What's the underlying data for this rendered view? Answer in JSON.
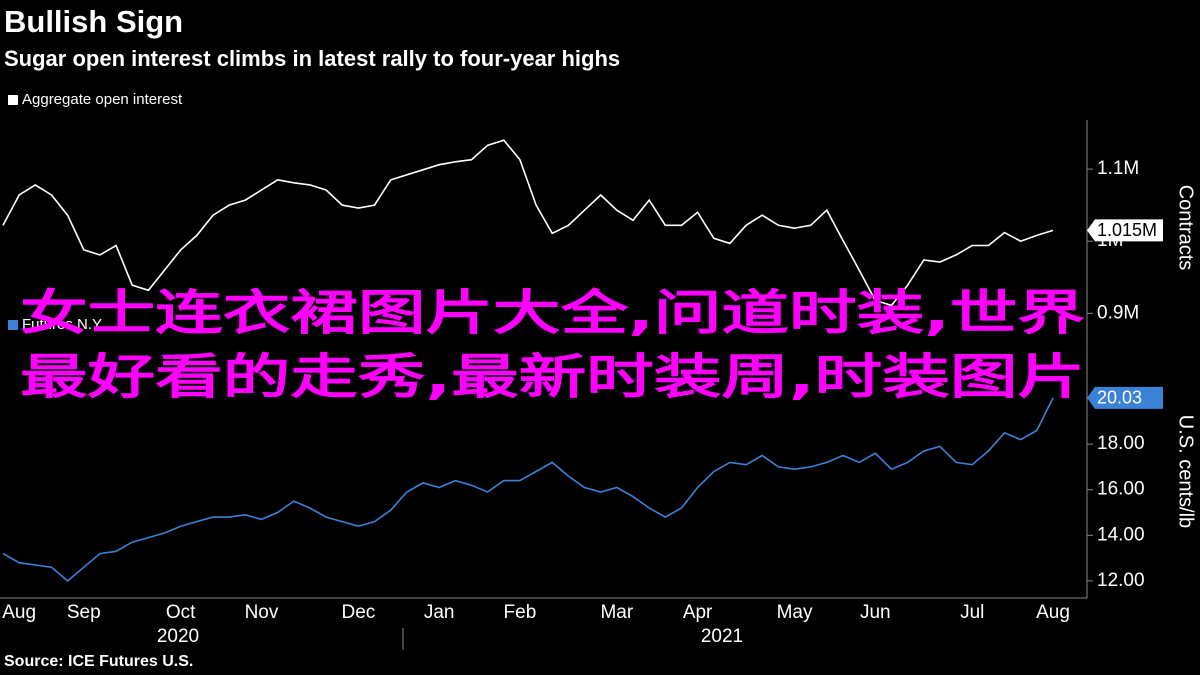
{
  "title": "Bullish Sign",
  "subtitle": "Sugar open interest climbs in latest rally to four-year highs",
  "source": "Source: ICE Futures U.S.",
  "overlay": [
    "女士连衣裙图片大全,问道时装,世界",
    "最好看的走秀,最新时装周,时装图片"
  ],
  "chart_data": [
    {
      "type": "line",
      "y_label": "Contracts",
      "ylim": [
        870000,
        1168000
      ],
      "yticks": [
        {
          "value": 900000,
          "label": "0.9M"
        },
        {
          "value": 1000000,
          "label": "1M"
        },
        {
          "value": 1100000,
          "label": "1.1M"
        }
      ],
      "grid": false,
      "series": [
        {
          "name": "Aggregate open interest",
          "color": "#ffffff",
          "values": [
            1022000,
            1064000,
            1078000,
            1064000,
            1036000,
            988000,
            981000,
            994000,
            939000,
            932000,
            960000,
            988000,
            1008000,
            1036000,
            1050000,
            1057000,
            1071000,
            1085000,
            1081000,
            1078000,
            1071000,
            1050000,
            1046000,
            1050000,
            1085000,
            1092000,
            1099000,
            1106000,
            1110000,
            1113000,
            1133000,
            1140000,
            1113000,
            1050000,
            1011000,
            1022000,
            1043000,
            1064000,
            1043000,
            1029000,
            1057000,
            1022000,
            1022000,
            1040000,
            1004000,
            997000,
            1022000,
            1036000,
            1022000,
            1018000,
            1022000,
            1043000,
            1001000,
            960000,
            918000,
            911000,
            939000,
            974000,
            971000,
            981000,
            994000,
            994000,
            1012000,
            1000000,
            1008000,
            1015000
          ],
          "value_labels": [
            null,
            null,
            null,
            null,
            null,
            null,
            null,
            null,
            null,
            null,
            null,
            null,
            null,
            null,
            null,
            null,
            null,
            null,
            null,
            null,
            null,
            null,
            null,
            null,
            null,
            null,
            null,
            null,
            null,
            null,
            null,
            null,
            null,
            null,
            null,
            null,
            null,
            null,
            null,
            null,
            null,
            null,
            null,
            null,
            null,
            null,
            null,
            null,
            null,
            null,
            null,
            null,
            null,
            null,
            null,
            null,
            null,
            null,
            null,
            null,
            null,
            null,
            null,
            null,
            null,
            "1.015M"
          ]
        }
      ]
    },
    {
      "type": "line",
      "y_label": "U.S. cents/lb",
      "ylim": [
        11.25,
        22.35
      ],
      "yticks": [
        {
          "value": 12,
          "label": "12.00"
        },
        {
          "value": 14,
          "label": "14.00"
        },
        {
          "value": 16,
          "label": "16.00"
        },
        {
          "value": 18,
          "label": "18.00"
        },
        {
          "value": 20,
          "label": "20.00"
        }
      ],
      "grid": false,
      "categories": [
        null,
        "Aug",
        null,
        null,
        null,
        "Sep",
        null,
        null,
        null,
        null,
        null,
        "Oct",
        null,
        null,
        null,
        null,
        "Nov",
        null,
        null,
        null,
        null,
        null,
        "Dec",
        null,
        null,
        null,
        null,
        "Jan",
        null,
        null,
        null,
        null,
        "Feb",
        null,
        null,
        null,
        null,
        null,
        "Mar",
        null,
        null,
        null,
        null,
        "Apr",
        null,
        null,
        null,
        null,
        null,
        "May",
        null,
        null,
        null,
        null,
        "Jun",
        null,
        null,
        null,
        null,
        null,
        "Jul",
        null,
        null,
        null,
        null,
        "Aug"
      ],
      "x_group_labels": [
        "2020",
        "2021"
      ],
      "series": [
        {
          "name": "Futures N.Y.",
          "color": "#3b82d6",
          "values": [
            13.2,
            12.8,
            12.7,
            12.6,
            12.0,
            12.6,
            13.2,
            13.3,
            13.7,
            13.9,
            14.1,
            14.4,
            14.6,
            14.8,
            14.8,
            14.9,
            14.7,
            15.0,
            15.5,
            15.2,
            14.8,
            14.6,
            14.4,
            14.6,
            15.1,
            15.9,
            16.3,
            16.1,
            16.4,
            16.2,
            15.9,
            16.4,
            16.4,
            16.8,
            17.2,
            16.6,
            16.1,
            15.9,
            16.1,
            15.7,
            15.2,
            14.8,
            15.2,
            16.1,
            16.8,
            17.2,
            17.1,
            17.5,
            17.0,
            16.9,
            17.0,
            17.2,
            17.5,
            17.2,
            17.6,
            16.9,
            17.2,
            17.7,
            17.9,
            17.2,
            17.1,
            17.7,
            18.5,
            18.2,
            18.6,
            20.03
          ],
          "value_labels": [
            null,
            null,
            null,
            null,
            null,
            null,
            null,
            null,
            null,
            null,
            null,
            null,
            null,
            null,
            null,
            null,
            null,
            null,
            null,
            null,
            null,
            null,
            null,
            null,
            null,
            null,
            null,
            null,
            null,
            null,
            null,
            null,
            null,
            null,
            null,
            null,
            null,
            null,
            null,
            null,
            null,
            null,
            null,
            null,
            null,
            null,
            null,
            null,
            null,
            null,
            null,
            null,
            null,
            null,
            null,
            null,
            null,
            null,
            null,
            null,
            null,
            null,
            null,
            null,
            null,
            "20.03"
          ]
        }
      ]
    }
  ]
}
